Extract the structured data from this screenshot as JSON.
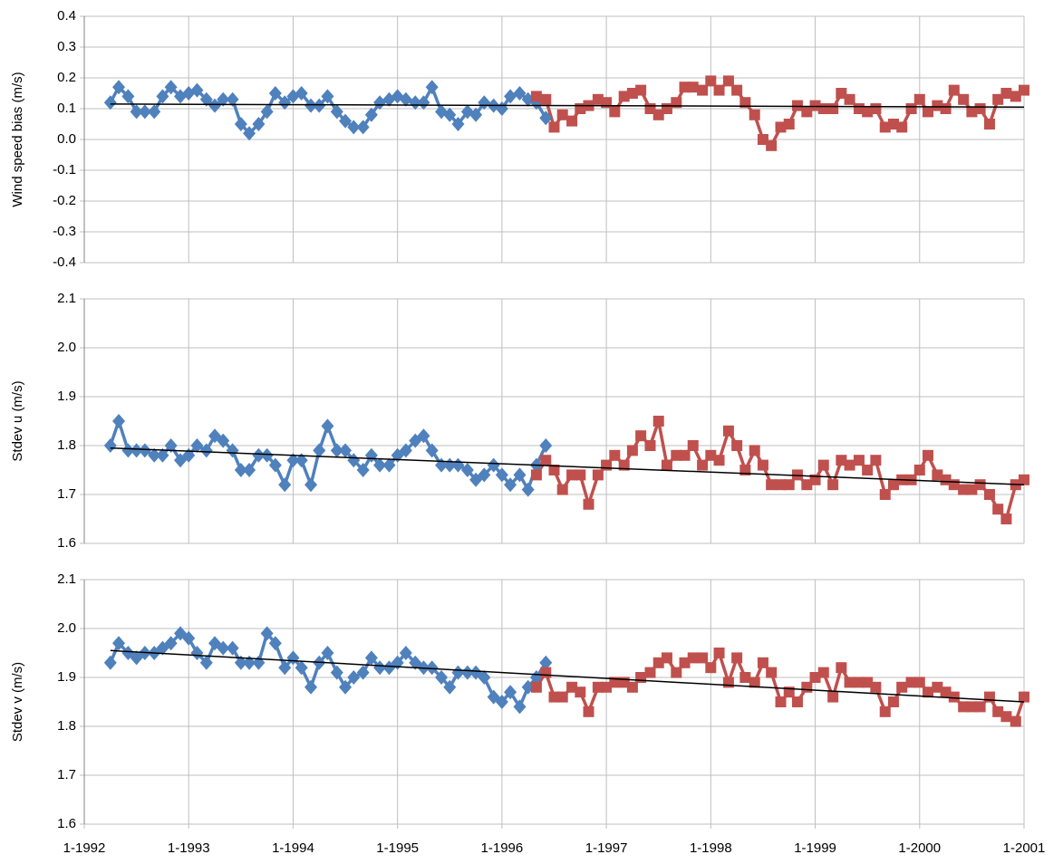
{
  "chart_data": [
    {
      "type": "line",
      "ylabel": "Wind speed bias (m/s)",
      "x": [
        1992.25,
        1992.33,
        1992.42,
        1992.5,
        1992.58,
        1992.67,
        1992.75,
        1992.83,
        1992.92,
        1993.0,
        1993.08,
        1993.17,
        1993.25,
        1993.33,
        1993.42,
        1993.5,
        1993.58,
        1993.67,
        1993.75,
        1993.83,
        1993.92,
        1994.0,
        1994.08,
        1994.17,
        1994.25,
        1994.33,
        1994.42,
        1994.5,
        1994.58,
        1994.67,
        1994.75,
        1994.83,
        1994.92,
        1995.0,
        1995.08,
        1995.17,
        1995.25,
        1995.33,
        1995.42,
        1995.5,
        1995.58,
        1995.67,
        1995.75,
        1995.83,
        1995.92,
        1996.0,
        1996.08,
        1996.17,
        1996.25,
        1996.33,
        1996.42,
        1996.5,
        1996.58,
        1996.67,
        1996.75,
        1996.83,
        1996.92,
        1997.0,
        1997.08,
        1997.17,
        1997.25,
        1997.33,
        1997.42,
        1997.5,
        1997.58,
        1997.67,
        1997.75,
        1997.83,
        1997.92,
        1998.0,
        1998.08,
        1998.17,
        1998.25,
        1998.33,
        1998.42,
        1998.5,
        1998.58,
        1998.67,
        1998.75,
        1998.83,
        1998.92,
        1999.0,
        1999.08,
        1999.17,
        1999.25,
        1999.33,
        1999.42,
        1999.5,
        1999.58,
        1999.67,
        1999.75,
        1999.83,
        1999.92,
        2000.0,
        2000.08,
        2000.17,
        2000.25,
        2000.33,
        2000.42,
        2000.5,
        2000.58,
        2000.67,
        2000.75,
        2000.83,
        2000.92,
        2001.0
      ],
      "series": [
        {
          "color": "#4f81bd",
          "marker": "diamond",
          "values": [
            0.12,
            0.17,
            0.14,
            0.09,
            0.09,
            0.09,
            0.14,
            0.17,
            0.14,
            0.15,
            0.16,
            0.13,
            0.11,
            0.13,
            0.13,
            0.05,
            0.02,
            0.05,
            0.09,
            0.15,
            0.12,
            0.14,
            0.15,
            0.11,
            0.11,
            0.14,
            0.09,
            0.06,
            0.04,
            0.04,
            0.08,
            0.12,
            0.13,
            0.14,
            0.13,
            0.12,
            0.12,
            0.17,
            0.09,
            0.08,
            0.05,
            0.09,
            0.08,
            0.12,
            0.11,
            0.1,
            0.14,
            0.15,
            0.13,
            0.12,
            0.07,
            null,
            null,
            null,
            null,
            null,
            null,
            null,
            null,
            null,
            null,
            null,
            null,
            null,
            null,
            null,
            null,
            null,
            null,
            null,
            null,
            null,
            null,
            null,
            null,
            null,
            null,
            null,
            null,
            null,
            null,
            null,
            null,
            null,
            null,
            null,
            null,
            null,
            null,
            null,
            null,
            null,
            null,
            null,
            null,
            null,
            null,
            null,
            null,
            null,
            null,
            null,
            null,
            null,
            null,
            null
          ]
        },
        {
          "color": "#c0504d",
          "marker": "square",
          "values": [
            null,
            null,
            null,
            null,
            null,
            null,
            null,
            null,
            null,
            null,
            null,
            null,
            null,
            null,
            null,
            null,
            null,
            null,
            null,
            null,
            null,
            null,
            null,
            null,
            null,
            null,
            null,
            null,
            null,
            null,
            null,
            null,
            null,
            null,
            null,
            null,
            null,
            null,
            null,
            null,
            null,
            null,
            null,
            null,
            null,
            null,
            null,
            null,
            null,
            0.14,
            0.13,
            0.04,
            0.08,
            0.06,
            0.1,
            0.11,
            0.13,
            0.12,
            0.09,
            0.14,
            0.15,
            0.16,
            0.1,
            0.08,
            0.1,
            0.12,
            0.17,
            0.17,
            0.16,
            0.19,
            0.16,
            0.19,
            0.16,
            0.12,
            0.08,
            0.0,
            -0.02,
            0.04,
            0.05,
            0.11,
            0.09,
            0.11,
            0.1,
            0.1,
            0.15,
            0.13,
            0.1,
            0.09,
            0.1,
            0.04,
            0.05,
            0.04,
            0.1,
            0.13,
            0.09,
            0.11,
            0.1,
            0.16,
            0.13,
            0.09,
            0.1,
            0.05,
            0.13,
            0.15,
            0.14,
            0.16
          ]
        }
      ],
      "trend": {
        "color": "#000000",
        "x": [
          1992.25,
          2001.0
        ],
        "values": [
          0.115,
          0.105
        ]
      },
      "ylim": [
        -0.4,
        0.4
      ],
      "yticks": [
        -0.4,
        -0.3,
        -0.2,
        -0.1,
        {
          "value": 0,
          "label": "0.0"
        },
        0.1,
        0.2,
        0.3,
        0.4
      ],
      "grid": true
    },
    {
      "type": "line",
      "ylabel": "Stdev u (m/s)",
      "x": [
        1992.25,
        1992.33,
        1992.42,
        1992.5,
        1992.58,
        1992.67,
        1992.75,
        1992.83,
        1992.92,
        1993.0,
        1993.08,
        1993.17,
        1993.25,
        1993.33,
        1993.42,
        1993.5,
        1993.58,
        1993.67,
        1993.75,
        1993.83,
        1993.92,
        1994.0,
        1994.08,
        1994.17,
        1994.25,
        1994.33,
        1994.42,
        1994.5,
        1994.58,
        1994.67,
        1994.75,
        1994.83,
        1994.92,
        1995.0,
        1995.08,
        1995.17,
        1995.25,
        1995.33,
        1995.42,
        1995.5,
        1995.58,
        1995.67,
        1995.75,
        1995.83,
        1995.92,
        1996.0,
        1996.08,
        1996.17,
        1996.25,
        1996.33,
        1996.42,
        1996.5,
        1996.58,
        1996.67,
        1996.75,
        1996.83,
        1996.92,
        1997.0,
        1997.08,
        1997.17,
        1997.25,
        1997.33,
        1997.42,
        1997.5,
        1997.58,
        1997.67,
        1997.75,
        1997.83,
        1997.92,
        1998.0,
        1998.08,
        1998.17,
        1998.25,
        1998.33,
        1998.42,
        1998.5,
        1998.58,
        1998.67,
        1998.75,
        1998.83,
        1998.92,
        1999.0,
        1999.08,
        1999.17,
        1999.25,
        1999.33,
        1999.42,
        1999.5,
        1999.58,
        1999.67,
        1999.75,
        1999.83,
        1999.92,
        2000.0,
        2000.08,
        2000.17,
        2000.25,
        2000.33,
        2000.42,
        2000.5,
        2000.58,
        2000.67,
        2000.75,
        2000.83,
        2000.92,
        2001.0
      ],
      "series": [
        {
          "color": "#4f81bd",
          "marker": "diamond",
          "values": [
            1.8,
            1.85,
            1.79,
            1.79,
            1.79,
            1.78,
            1.78,
            1.8,
            1.77,
            1.78,
            1.8,
            1.79,
            1.82,
            1.81,
            1.79,
            1.75,
            1.75,
            1.78,
            1.78,
            1.76,
            1.72,
            1.77,
            1.77,
            1.72,
            1.79,
            1.84,
            1.79,
            1.79,
            1.77,
            1.75,
            1.78,
            1.76,
            1.76,
            1.78,
            1.79,
            1.81,
            1.82,
            1.79,
            1.76,
            1.76,
            1.76,
            1.75,
            1.73,
            1.74,
            1.76,
            1.74,
            1.72,
            1.74,
            1.71,
            1.76,
            1.8,
            null,
            null,
            null,
            null,
            null,
            null,
            null,
            null,
            null,
            null,
            null,
            null,
            null,
            null,
            null,
            null,
            null,
            null,
            null,
            null,
            null,
            null,
            null,
            null,
            null,
            null,
            null,
            null,
            null,
            null,
            null,
            null,
            null,
            null,
            null,
            null,
            null,
            null,
            null,
            null,
            null,
            null,
            null,
            null,
            null,
            null,
            null,
            null,
            null,
            null,
            null,
            null,
            null,
            null,
            null
          ]
        },
        {
          "color": "#c0504d",
          "marker": "square",
          "values": [
            null,
            null,
            null,
            null,
            null,
            null,
            null,
            null,
            null,
            null,
            null,
            null,
            null,
            null,
            null,
            null,
            null,
            null,
            null,
            null,
            null,
            null,
            null,
            null,
            null,
            null,
            null,
            null,
            null,
            null,
            null,
            null,
            null,
            null,
            null,
            null,
            null,
            null,
            null,
            null,
            null,
            null,
            null,
            null,
            null,
            null,
            null,
            null,
            null,
            1.74,
            1.77,
            1.75,
            1.71,
            1.74,
            1.74,
            1.68,
            1.74,
            1.76,
            1.78,
            1.76,
            1.79,
            1.82,
            1.8,
            1.85,
            1.76,
            1.78,
            1.78,
            1.8,
            1.76,
            1.78,
            1.77,
            1.83,
            1.8,
            1.75,
            1.79,
            1.76,
            1.72,
            1.72,
            1.72,
            1.74,
            1.72,
            1.73,
            1.76,
            1.72,
            1.77,
            1.76,
            1.77,
            1.75,
            1.77,
            1.7,
            1.72,
            1.73,
            1.73,
            1.75,
            1.78,
            1.74,
            1.73,
            1.72,
            1.71,
            1.71,
            1.72,
            1.7,
            1.67,
            1.65,
            1.72,
            1.73
          ]
        }
      ],
      "trend": {
        "color": "#000000",
        "x": [
          1992.25,
          2001.0
        ],
        "values": [
          1.795,
          1.72
        ]
      },
      "ylim": [
        1.6,
        2.1
      ],
      "yticks": [
        1.6,
        1.7,
        1.8,
        1.9,
        {
          "value": 2,
          "label": "2.0"
        },
        2.1
      ],
      "grid": true
    },
    {
      "type": "line",
      "ylabel": "Stdev v (m/s)",
      "x": [
        1992.25,
        1992.33,
        1992.42,
        1992.5,
        1992.58,
        1992.67,
        1992.75,
        1992.83,
        1992.92,
        1993.0,
        1993.08,
        1993.17,
        1993.25,
        1993.33,
        1993.42,
        1993.5,
        1993.58,
        1993.67,
        1993.75,
        1993.83,
        1993.92,
        1994.0,
        1994.08,
        1994.17,
        1994.25,
        1994.33,
        1994.42,
        1994.5,
        1994.58,
        1994.67,
        1994.75,
        1994.83,
        1994.92,
        1995.0,
        1995.08,
        1995.17,
        1995.25,
        1995.33,
        1995.42,
        1995.5,
        1995.58,
        1995.67,
        1995.75,
        1995.83,
        1995.92,
        1996.0,
        1996.08,
        1996.17,
        1996.25,
        1996.33,
        1996.42,
        1996.5,
        1996.58,
        1996.67,
        1996.75,
        1996.83,
        1996.92,
        1997.0,
        1997.08,
        1997.17,
        1997.25,
        1997.33,
        1997.42,
        1997.5,
        1997.58,
        1997.67,
        1997.75,
        1997.83,
        1997.92,
        1998.0,
        1998.08,
        1998.17,
        1998.25,
        1998.33,
        1998.42,
        1998.5,
        1998.58,
        1998.67,
        1998.75,
        1998.83,
        1998.92,
        1999.0,
        1999.08,
        1999.17,
        1999.25,
        1999.33,
        1999.42,
        1999.5,
        1999.58,
        1999.67,
        1999.75,
        1999.83,
        1999.92,
        2000.0,
        2000.08,
        2000.17,
        2000.25,
        2000.33,
        2000.42,
        2000.5,
        2000.58,
        2000.67,
        2000.75,
        2000.83,
        2000.92,
        2001.0
      ],
      "series": [
        {
          "color": "#4f81bd",
          "marker": "diamond",
          "values": [
            1.93,
            1.97,
            1.95,
            1.94,
            1.95,
            1.95,
            1.96,
            1.97,
            1.99,
            1.98,
            1.95,
            1.93,
            1.97,
            1.96,
            1.96,
            1.93,
            1.93,
            1.93,
            1.99,
            1.97,
            1.92,
            1.94,
            1.92,
            1.88,
            1.93,
            1.95,
            1.91,
            1.88,
            1.9,
            1.91,
            1.94,
            1.92,
            1.92,
            1.93,
            1.95,
            1.93,
            1.92,
            1.92,
            1.9,
            1.88,
            1.91,
            1.91,
            1.91,
            1.9,
            1.86,
            1.85,
            1.87,
            1.84,
            1.88,
            1.9,
            1.93,
            null,
            null,
            null,
            null,
            null,
            null,
            null,
            null,
            null,
            null,
            null,
            null,
            null,
            null,
            null,
            null,
            null,
            null,
            null,
            null,
            null,
            null,
            null,
            null,
            null,
            null,
            null,
            null,
            null,
            null,
            null,
            null,
            null,
            null,
            null,
            null,
            null,
            null,
            null,
            null,
            null,
            null,
            null,
            null,
            null,
            null,
            null,
            null,
            null,
            null,
            null,
            null,
            null,
            null,
            null
          ]
        },
        {
          "color": "#c0504d",
          "marker": "square",
          "values": [
            null,
            null,
            null,
            null,
            null,
            null,
            null,
            null,
            null,
            null,
            null,
            null,
            null,
            null,
            null,
            null,
            null,
            null,
            null,
            null,
            null,
            null,
            null,
            null,
            null,
            null,
            null,
            null,
            null,
            null,
            null,
            null,
            null,
            null,
            null,
            null,
            null,
            null,
            null,
            null,
            null,
            null,
            null,
            null,
            null,
            null,
            null,
            null,
            null,
            1.88,
            1.91,
            1.86,
            1.86,
            1.88,
            1.87,
            1.83,
            1.88,
            1.88,
            1.89,
            1.89,
            1.88,
            1.9,
            1.91,
            1.93,
            1.94,
            1.91,
            1.93,
            1.94,
            1.94,
            1.92,
            1.95,
            1.89,
            1.94,
            1.9,
            1.89,
            1.93,
            1.91,
            1.85,
            1.87,
            1.85,
            1.88,
            1.9,
            1.91,
            1.86,
            1.92,
            1.89,
            1.89,
            1.89,
            1.88,
            1.83,
            1.85,
            1.88,
            1.89,
            1.89,
            1.87,
            1.88,
            1.87,
            1.86,
            1.84,
            1.84,
            1.84,
            1.86,
            1.83,
            1.82,
            1.81,
            1.86
          ]
        }
      ],
      "trend": {
        "color": "#000000",
        "x": [
          1992.25,
          2001.0
        ],
        "values": [
          1.955,
          1.85
        ]
      },
      "ylim": [
        1.6,
        2.1
      ],
      "yticks": [
        1.6,
        1.7,
        1.8,
        1.9,
        {
          "value": 2,
          "label": "2.0"
        },
        2.1
      ],
      "xlim": [
        1992,
        2001
      ],
      "xticks": [
        {
          "value": 1992,
          "label": "1-1992"
        },
        {
          "value": 1993,
          "label": "1-1993"
        },
        {
          "value": 1994,
          "label": "1-1994"
        },
        {
          "value": 1995,
          "label": "1-1995"
        },
        {
          "value": 1996,
          "label": "1-1996"
        },
        {
          "value": 1997,
          "label": "1-1997"
        },
        {
          "value": 1998,
          "label": "1-1998"
        },
        {
          "value": 1999,
          "label": "1-1999"
        },
        {
          "value": 2000,
          "label": "1-2000"
        },
        {
          "value": 2001,
          "label": "1-2001"
        }
      ],
      "grid": true
    }
  ]
}
